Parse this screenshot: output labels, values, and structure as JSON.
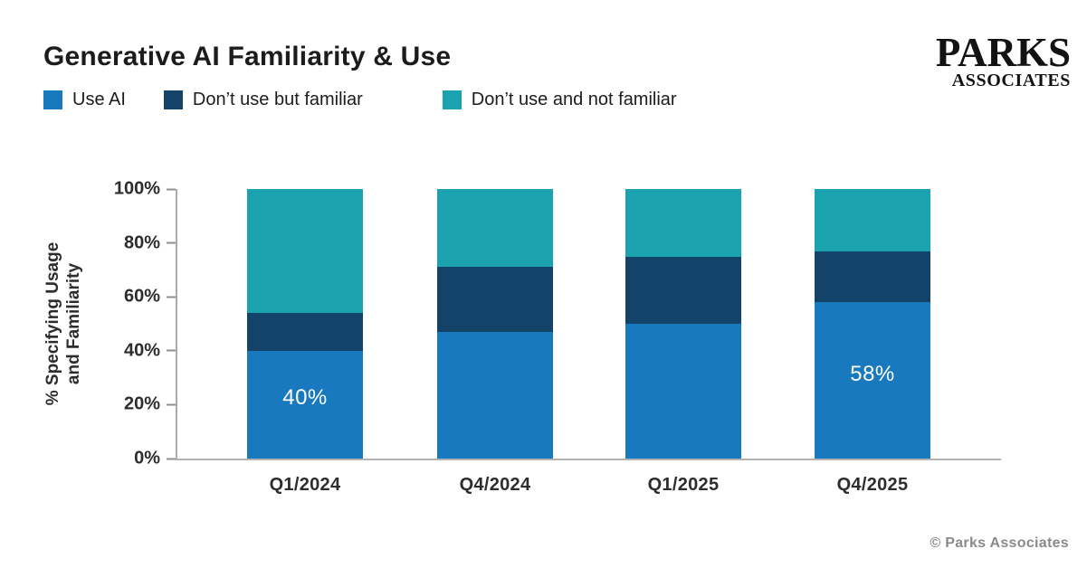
{
  "page": {
    "title": "Generative AI Familiarity & Use",
    "footer": "© Parks Associates"
  },
  "logo": {
    "line1": "PARKS",
    "line2": "ASSOCIATES"
  },
  "y_axis_title": {
    "line1": "% Specifying Usage",
    "line2": "and Familiarity"
  },
  "chart_data": {
    "type": "bar",
    "stacked": true,
    "title": "Generative AI Familiarity & Use",
    "categories": [
      "Q1/2024",
      "Q4/2024",
      "Q1/2025",
      "Q4/2025"
    ],
    "series": [
      {
        "name": "Use AI",
        "color": "#1979BE",
        "values": [
          40,
          47,
          50,
          58
        ]
      },
      {
        "name": "Don’t use but familiar",
        "color": "#134368",
        "values": [
          14,
          24,
          25,
          19
        ]
      },
      {
        "name": "Don’t use and not familiar",
        "color": "#1AA2AF",
        "values": [
          46,
          29,
          25,
          23
        ]
      }
    ],
    "bar_labels": [
      "40%",
      "",
      "",
      "58%"
    ],
    "ylabel": "% Specifying Usage and Familiarity",
    "xlabel": "",
    "yticks": [
      0,
      20,
      40,
      60,
      80,
      100
    ],
    "ytick_suffix": "%",
    "ylim": [
      0,
      100
    ],
    "grid": false,
    "legend_position": "top-left"
  }
}
